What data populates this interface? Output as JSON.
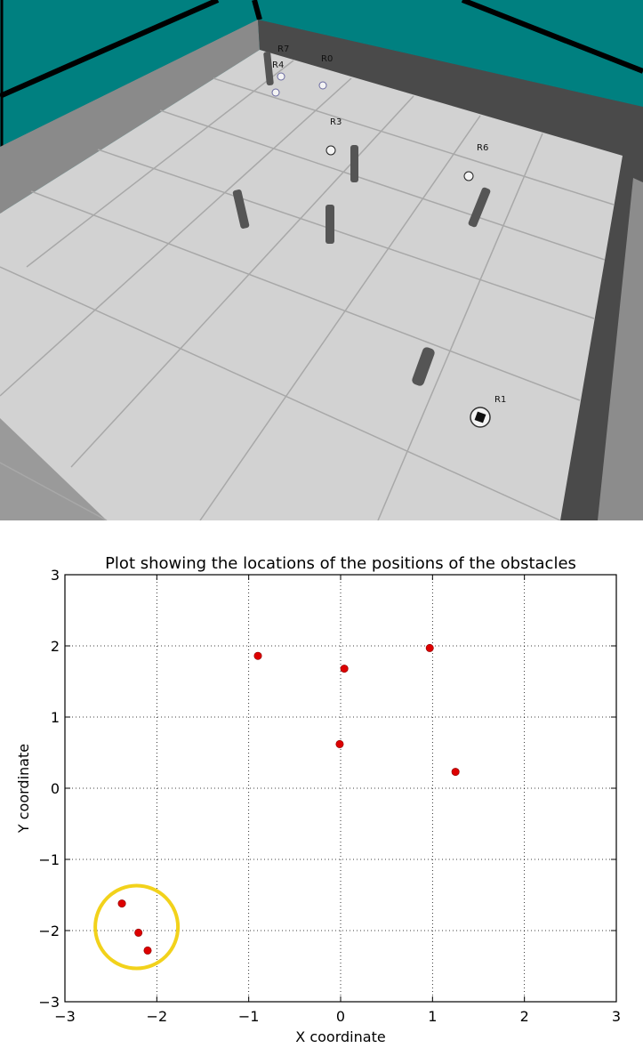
{
  "simulation": {
    "robots": [
      {
        "label": "R7"
      },
      {
        "label": "R4"
      },
      {
        "label": "R0"
      },
      {
        "label": "R3"
      },
      {
        "label": "R6"
      },
      {
        "label": "R1"
      }
    ],
    "colors": {
      "background": "#008080",
      "floor": "#d2d2d2",
      "wall_dark": "#4a4a4a",
      "wall_light": "#8c8c8c",
      "obstacle": "#555555"
    }
  },
  "chart_data": {
    "type": "scatter",
    "title": "Plot showing the locations of the positions of the obstacles",
    "xlabel": "X coordinate",
    "ylabel": "Y coordinate",
    "xlim": [
      -3,
      3
    ],
    "ylim": [
      -3,
      3
    ],
    "x_ticks": [
      -3,
      -2,
      -1,
      0,
      1,
      2,
      3
    ],
    "y_ticks": [
      -3,
      -2,
      -1,
      0,
      1,
      2,
      3
    ],
    "grid": true,
    "marker_color": "#dd0000",
    "points": [
      {
        "x": -0.9,
        "y": 1.86
      },
      {
        "x": 0.04,
        "y": 1.68
      },
      {
        "x": 0.97,
        "y": 1.97
      },
      {
        "x": -0.01,
        "y": 0.62
      },
      {
        "x": 1.25,
        "y": 0.23
      },
      {
        "x": -2.38,
        "y": -1.62
      },
      {
        "x": -2.2,
        "y": -2.03
      },
      {
        "x": -2.1,
        "y": -2.28
      }
    ],
    "highlight": {
      "type": "circle",
      "color": "#f2d21b",
      "center": {
        "x": -2.22,
        "y": -1.95
      },
      "radius": 0.45
    }
  }
}
